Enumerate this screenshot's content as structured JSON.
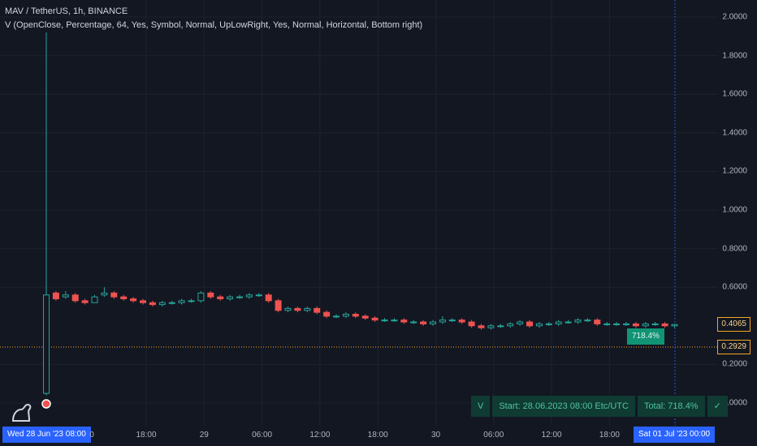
{
  "legend": {
    "title": "MAV / TetherUS, 1h, BINANCE",
    "indicator": "V (OpenClose, Percentage, 64, Yes, Symbol, Normal, UpLowRight, Yes, Normal, Horizontal, Bottom right)"
  },
  "y_axis": {
    "labels": [
      "2.0000",
      "1.8000",
      "1.6000",
      "1.4000",
      "1.2000",
      "1.0000",
      "0.8000",
      "0.6000",
      "0.2000",
      "0.0000"
    ]
  },
  "x_axis": {
    "labels": [
      "18:00",
      "29",
      "06:00",
      "12:00",
      "18:00",
      "30",
      "06:00",
      "12:00",
      "18:00"
    ]
  },
  "crosshair": {
    "start_label": "Wed 28 Jun '23   08:00",
    "end_label": "Sat 01 Jul '23   00:00",
    "hidden_tail": "0"
  },
  "price": {
    "last": "0.4065",
    "level": "0.2929",
    "last_color": "#f5a623",
    "level_color": "#f5a623"
  },
  "tag": {
    "percent": "718.4%"
  },
  "stats": {
    "prefix": "V",
    "start": "Start: 28.06.2023 08:00 Etc/UTC",
    "total": "Total: 718.4%",
    "check": "✓"
  },
  "colors": {
    "up": "#26a69a",
    "down": "#ef5350",
    "background": "#131722"
  },
  "chart_data": {
    "type": "candlestick",
    "ylim": [
      0,
      2
    ],
    "interval": "1h",
    "series": [
      {
        "o": 0.05,
        "c": 0.56,
        "h": 0.57,
        "l": 0.04
      },
      {
        "o": 0.57,
        "c": 0.54,
        "h": 0.58,
        "l": 0.53
      },
      {
        "o": 0.55,
        "c": 0.56,
        "h": 0.58,
        "l": 0.54
      },
      {
        "o": 0.56,
        "c": 0.53,
        "h": 0.57,
        "l": 0.52
      },
      {
        "o": 0.53,
        "c": 0.52,
        "h": 0.54,
        "l": 0.51
      },
      {
        "o": 0.52,
        "c": 0.55,
        "h": 0.56,
        "l": 0.52
      },
      {
        "o": 0.56,
        "c": 0.57,
        "h": 0.6,
        "l": 0.55
      },
      {
        "o": 0.57,
        "c": 0.55,
        "h": 0.58,
        "l": 0.54
      },
      {
        "o": 0.55,
        "c": 0.54,
        "h": 0.56,
        "l": 0.53
      },
      {
        "o": 0.54,
        "c": 0.53,
        "h": 0.55,
        "l": 0.52
      },
      {
        "o": 0.53,
        "c": 0.52,
        "h": 0.54,
        "l": 0.51
      },
      {
        "o": 0.52,
        "c": 0.51,
        "h": 0.53,
        "l": 0.5
      },
      {
        "o": 0.51,
        "c": 0.52,
        "h": 0.53,
        "l": 0.5
      },
      {
        "o": 0.52,
        "c": 0.52,
        "h": 0.53,
        "l": 0.51
      },
      {
        "o": 0.52,
        "c": 0.53,
        "h": 0.54,
        "l": 0.51
      },
      {
        "o": 0.53,
        "c": 0.53,
        "h": 0.54,
        "l": 0.52
      },
      {
        "o": 0.53,
        "c": 0.57,
        "h": 0.58,
        "l": 0.52
      },
      {
        "o": 0.57,
        "c": 0.55,
        "h": 0.58,
        "l": 0.54
      },
      {
        "o": 0.55,
        "c": 0.54,
        "h": 0.56,
        "l": 0.53
      },
      {
        "o": 0.54,
        "c": 0.55,
        "h": 0.56,
        "l": 0.53
      },
      {
        "o": 0.55,
        "c": 0.55,
        "h": 0.56,
        "l": 0.54
      },
      {
        "o": 0.55,
        "c": 0.56,
        "h": 0.57,
        "l": 0.54
      },
      {
        "o": 0.56,
        "c": 0.56,
        "h": 0.57,
        "l": 0.55
      },
      {
        "o": 0.56,
        "c": 0.53,
        "h": 0.57,
        "l": 0.52
      },
      {
        "o": 0.53,
        "c": 0.48,
        "h": 0.54,
        "l": 0.47
      },
      {
        "o": 0.48,
        "c": 0.49,
        "h": 0.5,
        "l": 0.47
      },
      {
        "o": 0.49,
        "c": 0.48,
        "h": 0.5,
        "l": 0.47
      },
      {
        "o": 0.48,
        "c": 0.49,
        "h": 0.5,
        "l": 0.47
      },
      {
        "o": 0.49,
        "c": 0.47,
        "h": 0.5,
        "l": 0.46
      },
      {
        "o": 0.47,
        "c": 0.45,
        "h": 0.48,
        "l": 0.44
      },
      {
        "o": 0.45,
        "c": 0.45,
        "h": 0.46,
        "l": 0.44
      },
      {
        "o": 0.45,
        "c": 0.46,
        "h": 0.47,
        "l": 0.44
      },
      {
        "o": 0.46,
        "c": 0.45,
        "h": 0.47,
        "l": 0.44
      },
      {
        "o": 0.45,
        "c": 0.44,
        "h": 0.46,
        "l": 0.43
      },
      {
        "o": 0.44,
        "c": 0.43,
        "h": 0.45,
        "l": 0.42
      },
      {
        "o": 0.43,
        "c": 0.43,
        "h": 0.44,
        "l": 0.42
      },
      {
        "o": 0.43,
        "c": 0.43,
        "h": 0.44,
        "l": 0.42
      },
      {
        "o": 0.43,
        "c": 0.42,
        "h": 0.44,
        "l": 0.41
      },
      {
        "o": 0.42,
        "c": 0.42,
        "h": 0.43,
        "l": 0.41
      },
      {
        "o": 0.42,
        "c": 0.41,
        "h": 0.43,
        "l": 0.4
      },
      {
        "o": 0.41,
        "c": 0.42,
        "h": 0.43,
        "l": 0.4
      },
      {
        "o": 0.42,
        "c": 0.43,
        "h": 0.45,
        "l": 0.41
      },
      {
        "o": 0.43,
        "c": 0.43,
        "h": 0.44,
        "l": 0.42
      },
      {
        "o": 0.43,
        "c": 0.42,
        "h": 0.44,
        "l": 0.41
      },
      {
        "o": 0.42,
        "c": 0.4,
        "h": 0.43,
        "l": 0.39
      },
      {
        "o": 0.4,
        "c": 0.39,
        "h": 0.41,
        "l": 0.38
      },
      {
        "o": 0.39,
        "c": 0.4,
        "h": 0.41,
        "l": 0.38
      },
      {
        "o": 0.4,
        "c": 0.4,
        "h": 0.41,
        "l": 0.39
      },
      {
        "o": 0.4,
        "c": 0.41,
        "h": 0.42,
        "l": 0.39
      },
      {
        "o": 0.41,
        "c": 0.42,
        "h": 0.43,
        "l": 0.4
      },
      {
        "o": 0.42,
        "c": 0.4,
        "h": 0.43,
        "l": 0.39
      },
      {
        "o": 0.4,
        "c": 0.41,
        "h": 0.42,
        "l": 0.39
      },
      {
        "o": 0.41,
        "c": 0.41,
        "h": 0.42,
        "l": 0.4
      },
      {
        "o": 0.41,
        "c": 0.42,
        "h": 0.43,
        "l": 0.4
      },
      {
        "o": 0.42,
        "c": 0.42,
        "h": 0.43,
        "l": 0.41
      },
      {
        "o": 0.42,
        "c": 0.43,
        "h": 0.44,
        "l": 0.41
      },
      {
        "o": 0.43,
        "c": 0.43,
        "h": 0.44,
        "l": 0.42
      },
      {
        "o": 0.43,
        "c": 0.41,
        "h": 0.44,
        "l": 0.4
      },
      {
        "o": 0.41,
        "c": 0.41,
        "h": 0.42,
        "l": 0.4
      },
      {
        "o": 0.41,
        "c": 0.41,
        "h": 0.42,
        "l": 0.4
      },
      {
        "o": 0.41,
        "c": 0.41,
        "h": 0.42,
        "l": 0.4
      },
      {
        "o": 0.41,
        "c": 0.4,
        "h": 0.42,
        "l": 0.39
      },
      {
        "o": 0.4,
        "c": 0.41,
        "h": 0.42,
        "l": 0.39
      },
      {
        "o": 0.41,
        "c": 0.41,
        "h": 0.42,
        "l": 0.4
      },
      {
        "o": 0.41,
        "c": 0.4,
        "h": 0.42,
        "l": 0.39
      },
      {
        "o": 0.4,
        "c": 0.4065,
        "h": 0.41,
        "l": 0.39
      }
    ]
  }
}
